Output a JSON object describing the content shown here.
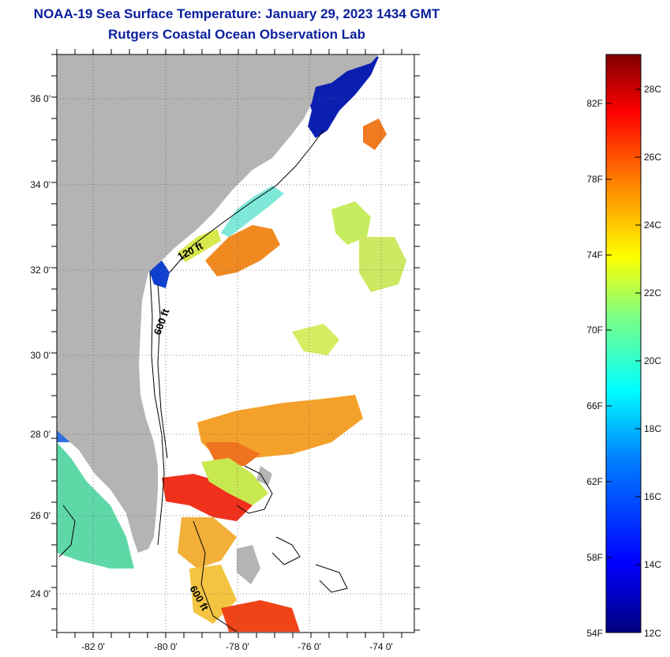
{
  "header": {
    "title_line1": "NOAA-19 Sea Surface Temperature:  January 29, 2023 1434 GMT",
    "title_line2": "Rutgers Coastal Ocean Observation Lab"
  },
  "map": {
    "lon_labels": [
      "-82 0'",
      "-80 0'",
      "-78 0'",
      "-76 0'",
      "-74 0'"
    ],
    "lat_labels": [
      "36 0'",
      "34 0'",
      "32 0'",
      "30 0'",
      "28 0'",
      "26 0'",
      "24 0'"
    ],
    "lon_range": [
      -83,
      -73
    ],
    "lat_range": [
      23,
      37
    ],
    "contour_labels": [
      "120 ft",
      "600 ft",
      "600 ft"
    ],
    "land_color": "#b4b4b4",
    "grid": "dotted"
  },
  "colorbar": {
    "fahrenheit_labels": [
      "82F",
      "78F",
      "74F",
      "70F",
      "66F",
      "62F",
      "58F",
      "54F"
    ],
    "celsius_labels": [
      "28C",
      "26C",
      "24C",
      "22C",
      "20C",
      "18C",
      "16C",
      "14C",
      "12C"
    ],
    "range_c": [
      12,
      29
    ],
    "colors": [
      "#00007f",
      "#0000ff",
      "#0080ff",
      "#00ffff",
      "#80ff80",
      "#ffff00",
      "#ff8000",
      "#ff0000",
      "#7f0000"
    ]
  }
}
